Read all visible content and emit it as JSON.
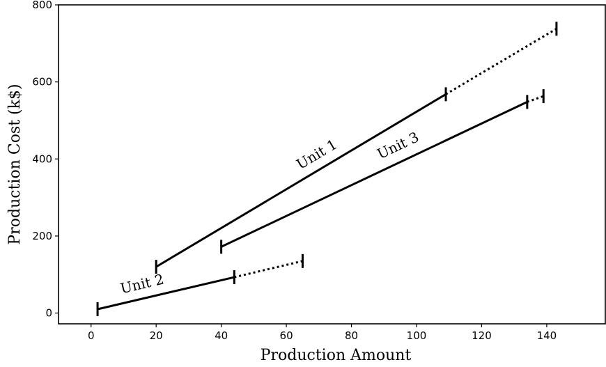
{
  "chart_data": {
    "type": "line",
    "title": "",
    "xlabel": "Production Amount",
    "ylabel": "Production Cost (k$)",
    "xlim": [
      -10,
      158
    ],
    "ylim": [
      -28,
      800
    ],
    "xticks": [
      0,
      20,
      40,
      60,
      80,
      100,
      120,
      140
    ],
    "yticks": [
      0,
      200,
      400,
      600,
      800
    ],
    "grid": false,
    "legend": "none",
    "series": [
      {
        "name": "Unit 1",
        "solid": [
          [
            20,
            120
          ],
          [
            109,
            568
          ]
        ],
        "dotted": [
          [
            109,
            568
          ],
          [
            143,
            738
          ]
        ],
        "markers": [
          [
            20,
            120
          ],
          [
            109,
            568
          ],
          [
            143,
            738
          ]
        ]
      },
      {
        "name": "Unit 2",
        "solid": [
          [
            2,
            10
          ],
          [
            44,
            93
          ]
        ],
        "dotted": [
          [
            44,
            93
          ],
          [
            65,
            135
          ]
        ],
        "markers": [
          [
            2,
            10
          ],
          [
            44,
            93
          ],
          [
            65,
            135
          ]
        ]
      },
      {
        "name": "Unit 3",
        "solid": [
          [
            40,
            172
          ],
          [
            134,
            548
          ]
        ],
        "dotted": [
          [
            134,
            548
          ],
          [
            139,
            563
          ]
        ],
        "markers": [
          [
            40,
            172
          ],
          [
            134,
            548
          ],
          [
            139,
            563
          ]
        ]
      }
    ]
  }
}
